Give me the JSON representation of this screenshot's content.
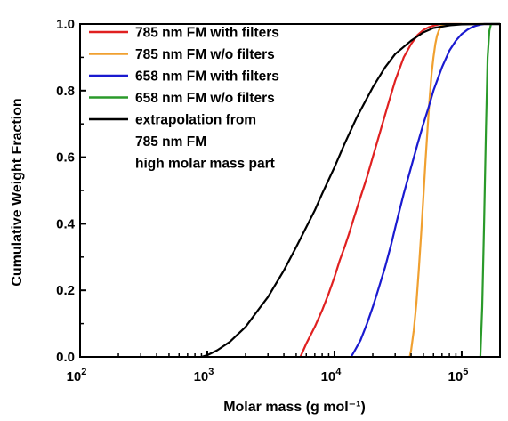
{
  "chart_data": {
    "type": "line",
    "xlabel": "Molar mass (g mol⁻¹)",
    "ylabel": "Cumulative Weight Fraction",
    "xscale": "log",
    "xlim": [
      100,
      200000
    ],
    "ylim": [
      0,
      1.0
    ],
    "x_ticks": [
      100,
      1000,
      10000,
      100000
    ],
    "x_tick_labels": [
      {
        "base": "10",
        "exp": "2"
      },
      {
        "base": "10",
        "exp": "3"
      },
      {
        "base": "10",
        "exp": "4"
      },
      {
        "base": "10",
        "exp": "5"
      }
    ],
    "y_ticks": [
      0,
      0.2,
      0.4,
      0.6,
      0.8,
      1.0
    ],
    "y_tick_labels": [
      "0.0",
      "0.2",
      "0.4",
      "0.6",
      "0.8",
      "1.0"
    ],
    "grid": false,
    "legend_position": "top-left",
    "series": [
      {
        "name": "785 nm FM with filters",
        "color": "#e02020",
        "x": [
          5400,
          6000,
          7000,
          8000,
          9000,
          10000,
          11000,
          12000,
          13000,
          14000,
          16000,
          18000,
          20000,
          23000,
          26000,
          30000,
          35000,
          40000,
          45000,
          50000,
          55000,
          60000,
          65000,
          70000,
          80000,
          100000
        ],
        "y": [
          0.0,
          0.04,
          0.09,
          0.14,
          0.19,
          0.24,
          0.29,
          0.33,
          0.37,
          0.41,
          0.48,
          0.54,
          0.6,
          0.68,
          0.75,
          0.83,
          0.9,
          0.94,
          0.967,
          0.982,
          0.99,
          0.995,
          0.998,
          1.0,
          1.0,
          1.0
        ]
      },
      {
        "name": "785 nm FM w/o filters",
        "color": "#f0a030",
        "x": [
          39000,
          40000,
          42000,
          44000,
          46000,
          48000,
          50000,
          52000,
          54000,
          56000,
          58000,
          60000,
          62000,
          64000,
          66000,
          68000,
          70000,
          75000,
          200000
        ],
        "y": [
          0.0,
          0.02,
          0.08,
          0.16,
          0.26,
          0.37,
          0.48,
          0.59,
          0.69,
          0.78,
          0.85,
          0.9,
          0.94,
          0.965,
          0.98,
          0.99,
          0.997,
          1.0,
          1.0
        ]
      },
      {
        "name": "658 nm FM with filters",
        "color": "#1a1ad0",
        "x": [
          13500,
          14500,
          16000,
          18000,
          20000,
          22000,
          25000,
          28000,
          31000,
          35000,
          40000,
          45000,
          50000,
          55000,
          60000,
          70000,
          80000,
          90000,
          100000,
          110000,
          120000,
          130000,
          140000,
          150000,
          200000
        ],
        "y": [
          0.0,
          0.02,
          0.05,
          0.1,
          0.15,
          0.2,
          0.27,
          0.34,
          0.41,
          0.49,
          0.57,
          0.64,
          0.7,
          0.75,
          0.8,
          0.87,
          0.92,
          0.95,
          0.97,
          0.982,
          0.99,
          0.995,
          0.998,
          1.0,
          1.0
        ]
      },
      {
        "name": "658 nm FM w/o filters",
        "color": "#2a9a2a",
        "x": [
          140000,
          145000,
          150000,
          155000,
          160000,
          165000,
          170000,
          200000
        ],
        "y": [
          0.0,
          0.15,
          0.4,
          0.68,
          0.9,
          0.98,
          1.0,
          1.0
        ]
      },
      {
        "name": "extrapolation from\n785 nm FM\nhigh molar mass part",
        "color": "#000000",
        "x": [
          900,
          1000,
          1200,
          1500,
          2000,
          2500,
          3000,
          4000,
          5000,
          6000,
          7000,
          8000,
          10000,
          12000,
          15000,
          20000,
          25000,
          30000,
          40000,
          50000,
          60000,
          80000,
          100000,
          150000,
          200000
        ],
        "y": [
          0.0,
          0.005,
          0.02,
          0.045,
          0.09,
          0.14,
          0.18,
          0.26,
          0.33,
          0.39,
          0.44,
          0.49,
          0.57,
          0.64,
          0.72,
          0.81,
          0.87,
          0.91,
          0.95,
          0.975,
          0.988,
          0.996,
          0.999,
          1.0,
          1.0
        ]
      }
    ]
  }
}
